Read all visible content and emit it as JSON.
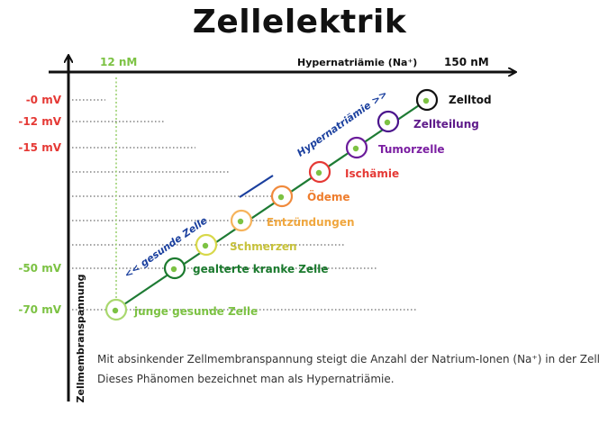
{
  "title": "Zellelektrik",
  "axes": {
    "x_label": "Hypernatriämie (Na⁺)",
    "x_start_label": "12 nM",
    "x_end_label": "150 nM",
    "y_label": "Zellmembranspannung"
  },
  "y_ticks": [
    {
      "label": "-0 mV",
      "color": "#e53935"
    },
    {
      "label": "-12 mV",
      "color": "#e53935"
    },
    {
      "label": "-15 mV",
      "color": "#e53935"
    },
    {
      "label": "-50 mV",
      "color": "#7cc243"
    },
    {
      "label": "-70 mV",
      "color": "#7cc243"
    }
  ],
  "stages": [
    {
      "label": "junge gesunde Zelle",
      "ring_color": "#a9d86e",
      "text_color": "#7cc243"
    },
    {
      "label": "gealterte kranke Zelle",
      "ring_color": "#1b7a2e",
      "text_color": "#1b7a2e"
    },
    {
      "label": "Schmerzen",
      "ring_color": "#d8d84a",
      "text_color": "#c7c23b"
    },
    {
      "label": "Entzündungen",
      "ring_color": "#f6b35b",
      "text_color": "#f0a73f"
    },
    {
      "label": "Ödeme",
      "ring_color": "#f08a3c",
      "text_color": "#ee7d2d"
    },
    {
      "label": "Ischämie",
      "ring_color": "#e53935",
      "text_color": "#e53935"
    },
    {
      "label": "Tumorzelle",
      "ring_color": "#6a1b9a",
      "text_color": "#7b1fa2"
    },
    {
      "label": "Zellteilung",
      "ring_color": "#4a148c",
      "text_color": "#5e1a8a"
    },
    {
      "label": "Zelltod",
      "ring_color": "#111111",
      "text_color": "#111111"
    }
  ],
  "annotations": {
    "healthy_arrow": "<< gesunde Zelle",
    "hyper_arrow": "Hypernatriämie >>"
  },
  "colors": {
    "axis": "#111111",
    "trend_line": "#1e7b34",
    "green_guide": "#7cc243",
    "grid": "#444444",
    "annotation_blue": "#1a3f9e",
    "cell_core": "#7cc243"
  },
  "caption": {
    "line1": "Mit absinkender Zellmembranspannung steigt die Anzahl der Natrium-Ionen (Na⁺) in der Zelle.",
    "line2": "Dieses Phänomen bezeichnet man als Hypernatriämie."
  }
}
